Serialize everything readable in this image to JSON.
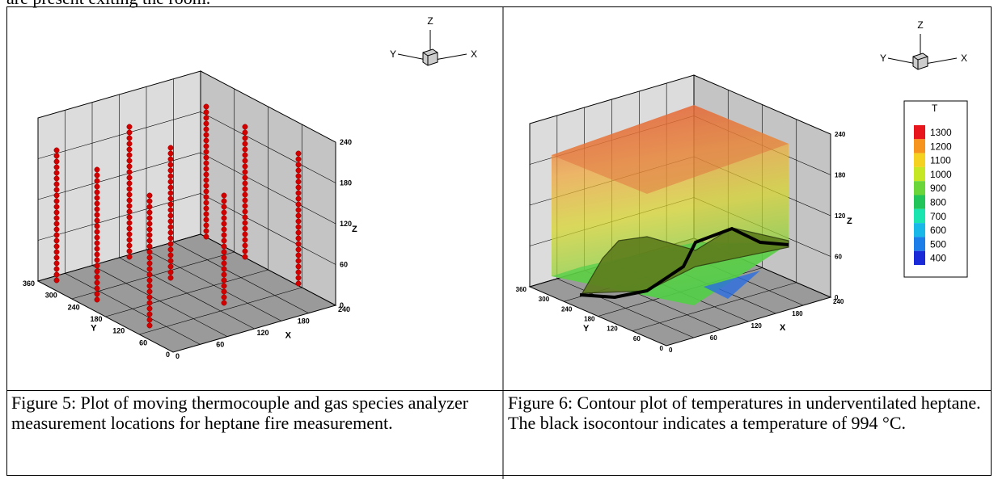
{
  "header_text": "are present exiting the room.",
  "figures": [
    {
      "axes": {
        "x_label": "X",
        "y_label": "Y",
        "z_label": "Z",
        "x_ticks": [
          "0",
          "60",
          "120",
          "180",
          "240"
        ],
        "y_ticks": [
          "360",
          "300",
          "240",
          "180",
          "120",
          "60",
          "0"
        ],
        "z_ticks": [
          "0",
          "60",
          "120",
          "180",
          "240"
        ]
      },
      "orientation": {
        "x": "X",
        "y": "Y",
        "z": "Z"
      },
      "caption": "Figure 5: Plot of moving thermocouple and gas species analyzer measurement locations for heptane fire measurement."
    },
    {
      "axes": {
        "x_label": "X",
        "y_label": "Y",
        "z_label": "Z",
        "x_ticks": [
          "0",
          "60",
          "120",
          "180",
          "240"
        ],
        "y_ticks": [
          "360",
          "300",
          "240",
          "180",
          "120",
          "60",
          "0"
        ],
        "z_ticks": [
          "0",
          "60",
          "120",
          "180",
          "240"
        ]
      },
      "orientation": {
        "x": "X",
        "y": "Y",
        "z": "Z"
      },
      "legend": {
        "title": "T",
        "levels": [
          "1300",
          "1200",
          "1100",
          "1000",
          "900",
          "800",
          "700",
          "600",
          "500",
          "400"
        ]
      },
      "caption": "Figure 6: Contour plot of temperatures in underventilated heptane. The black isocontour indicates a temperature of 994 °C."
    }
  ]
}
